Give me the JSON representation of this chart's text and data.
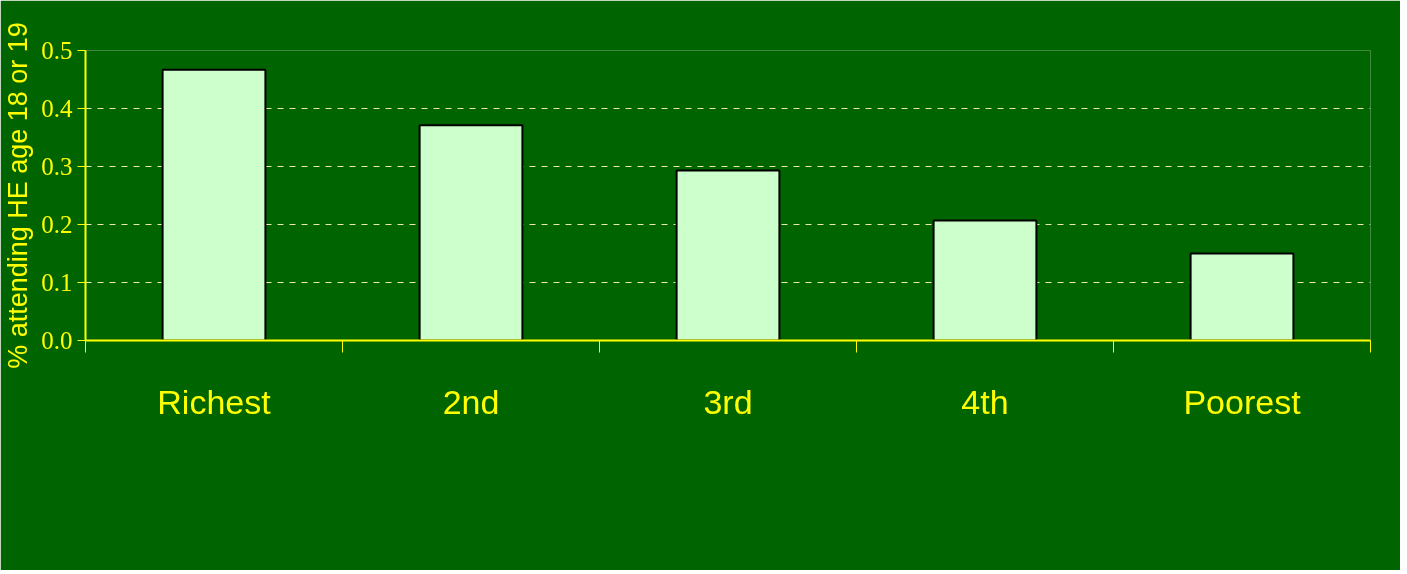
{
  "chart_data": {
    "type": "bar",
    "ylabel": "% attending HE age 18 or 19",
    "categories": [
      "Richest",
      "2nd",
      "3rd",
      "4th",
      "Poorest"
    ],
    "values": [
      0.467,
      0.371,
      0.293,
      0.207,
      0.15
    ],
    "color": "#ccffcc",
    "ylim": [
      0,
      0.5
    ],
    "yticks": [
      {
        "value": 0,
        "label": "0.0"
      },
      0.1,
      0.2,
      0.3,
      0.4,
      0.5
    ],
    "grid": "y"
  }
}
